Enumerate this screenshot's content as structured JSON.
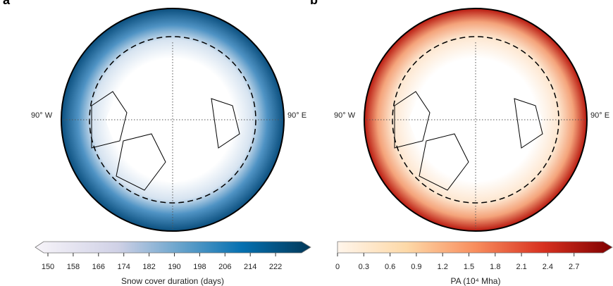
{
  "panels": [
    {
      "letter": "a",
      "lon_west": "90° W",
      "lon_east": "90° E"
    },
    {
      "letter": "b",
      "lon_west": "90° W",
      "lon_east": "90° E"
    }
  ],
  "colorbars": [
    {
      "title": "Snow cover duration (days)",
      "ticks": [
        "150",
        "158",
        "166",
        "174",
        "182",
        "190",
        "198",
        "206",
        "214",
        "222"
      ],
      "colors": [
        "#f7f4f9",
        "#d0d1e6",
        "#a6bddb",
        "#74a9cf",
        "#3690c0",
        "#0570b0",
        "#045a8d",
        "#023858"
      ]
    },
    {
      "title": "PA (10⁴ Mha)",
      "ticks": [
        "0",
        "0.3",
        "0.6",
        "0.9",
        "1.2",
        "1.5",
        "1.8",
        "2.1",
        "2.4",
        "2.7"
      ],
      "colors": [
        "#fff5eb",
        "#fdd9a8",
        "#fdae6b",
        "#f16b4a",
        "#d7301f",
        "#b30000",
        "#7f0000"
      ]
    }
  ]
}
